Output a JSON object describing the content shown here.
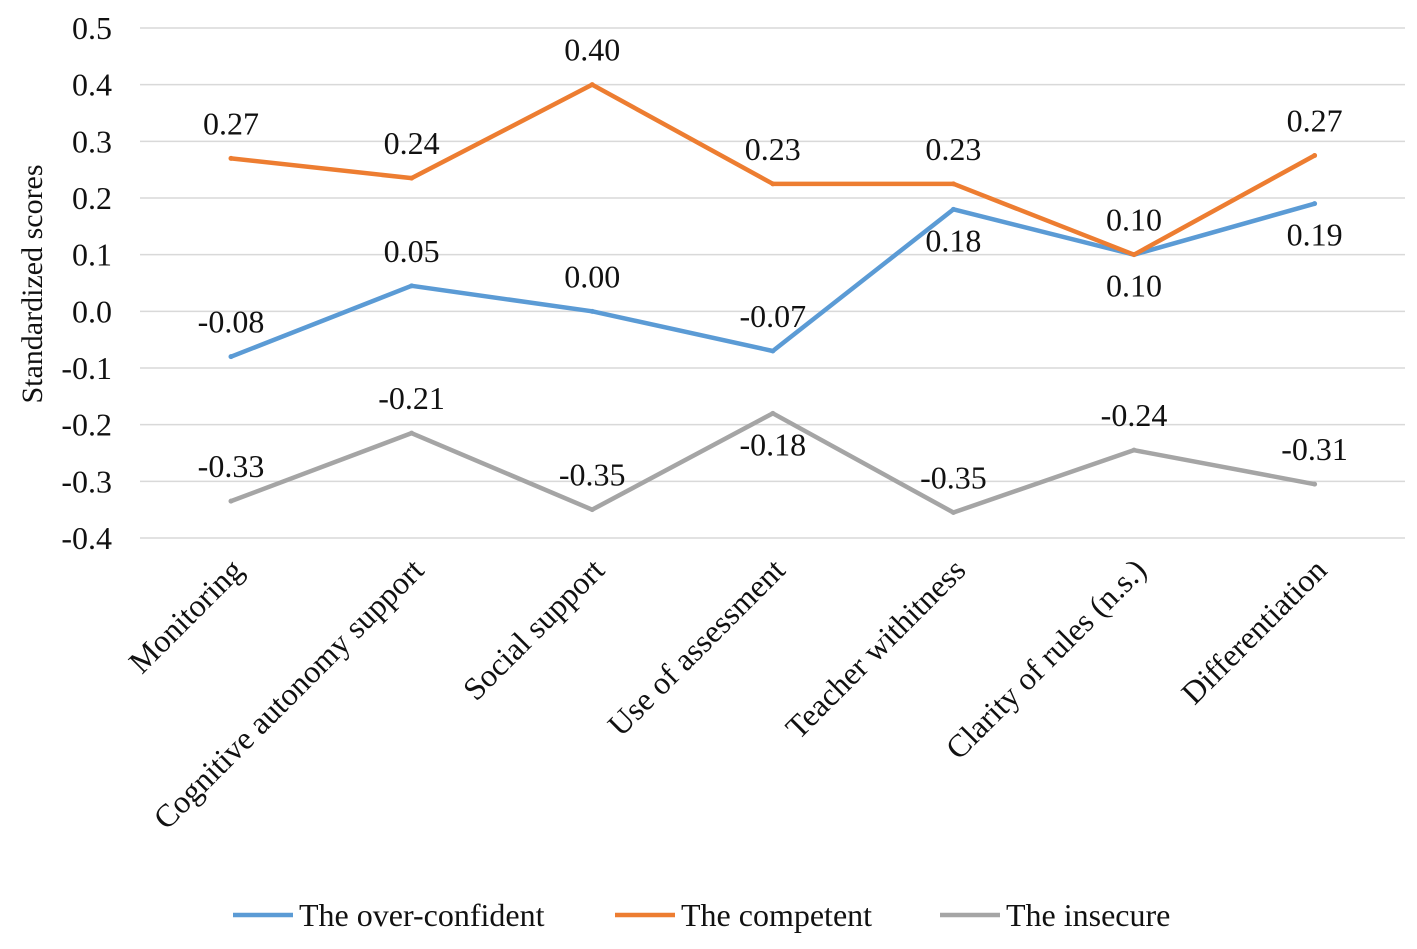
{
  "chart_data": {
    "type": "line",
    "title": "",
    "xlabel": "",
    "ylabel": "Standardized scores",
    "ylim": [
      -0.4,
      0.5
    ],
    "ytick_step": 0.1,
    "yticks": [
      "0.5",
      "0.4",
      "0.3",
      "0.2",
      "0.1",
      "0.0",
      "-0.1",
      "-0.2",
      "-0.3",
      "-0.4"
    ],
    "grid": true,
    "legend_position": "bottom",
    "categories": [
      "Monitoring",
      "Cognitive autonomy support",
      "Social support",
      "Use of assessment",
      "Teacher withitness",
      "Clarity of rules (n.s.)",
      "Differentiation"
    ],
    "series": [
      {
        "name": "The over-confident",
        "color": "#5b9bd5",
        "values": [
          -0.08,
          0.045,
          0.0,
          -0.07,
          0.18,
          0.1,
          0.19
        ],
        "labels": [
          "-0.08",
          "0.05",
          "0.00",
          "-0.07",
          "0.18",
          "0.10",
          "0.19"
        ],
        "label_pos": [
          "above",
          "above",
          "above",
          "above",
          "below",
          "below",
          "below"
        ]
      },
      {
        "name": "The competent",
        "color": "#ed7d31",
        "values": [
          0.27,
          0.235,
          0.4,
          0.225,
          0.225,
          0.1,
          0.275
        ],
        "labels": [
          "0.27",
          "0.24",
          "0.40",
          "0.23",
          "0.23",
          "0.10",
          "0.27"
        ],
        "label_pos": [
          "above",
          "above",
          "above",
          "above",
          "above",
          "above",
          "above"
        ]
      },
      {
        "name": "The insecure",
        "color": "#a5a5a5",
        "values": [
          -0.335,
          -0.215,
          -0.35,
          -0.18,
          -0.355,
          -0.245,
          -0.305
        ],
        "labels": [
          "-0.33",
          "-0.21",
          "-0.35",
          "-0.18",
          "-0.35",
          "-0.24",
          "-0.31"
        ],
        "label_pos": [
          "above",
          "above",
          "above",
          "below",
          "above",
          "above",
          "above"
        ]
      }
    ]
  }
}
